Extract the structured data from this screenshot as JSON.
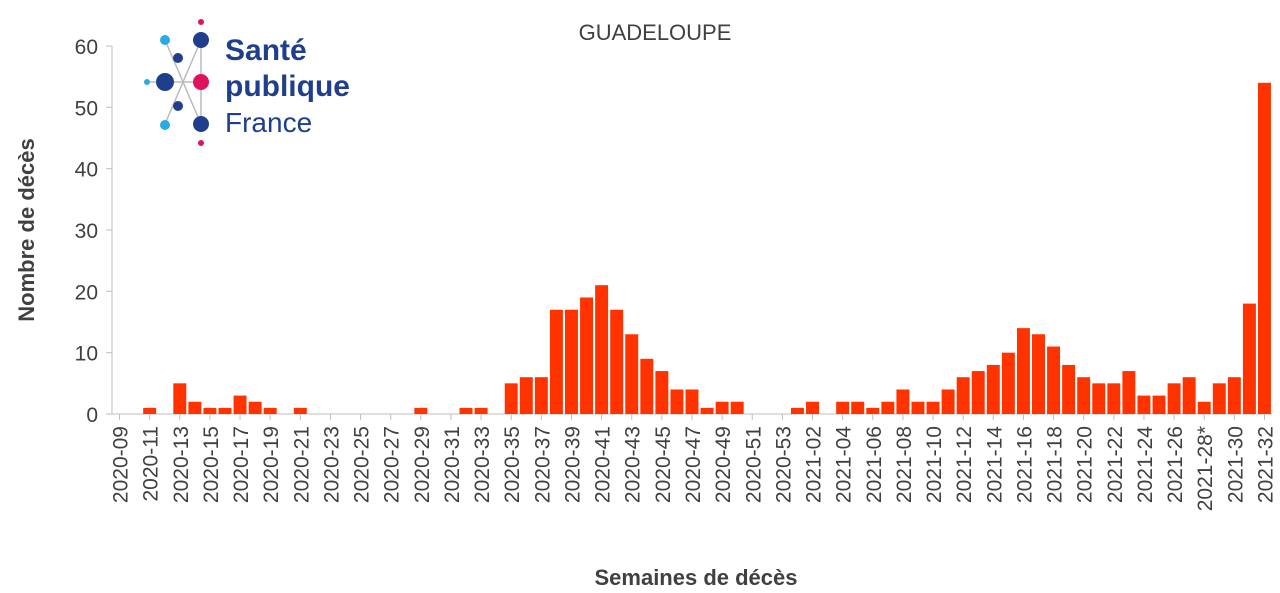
{
  "chart_data": {
    "type": "bar",
    "title": "GUADELOUPE",
    "x_label": "Semaines de décès",
    "y_label": "Nombre de décès",
    "logo": [
      "Santé",
      "publique",
      "France"
    ],
    "color": "#ff3300",
    "categories": [
      "2020-09",
      null,
      "2020-11",
      null,
      "2020-13",
      null,
      "2020-15",
      null,
      "2020-17",
      null,
      "2020-19",
      null,
      "2020-21",
      null,
      "2020-23",
      null,
      "2020-25",
      null,
      "2020-27",
      null,
      "2020-29",
      null,
      "2020-31",
      null,
      "2020-33",
      null,
      "2020-35",
      null,
      "2020-37",
      null,
      "2020-39",
      null,
      "2020-41",
      null,
      "2020-43",
      null,
      "2020-45",
      null,
      "2020-47",
      null,
      "2020-49",
      null,
      "2020-51",
      null,
      "2020-53",
      null,
      "2021-02",
      null,
      "2021-04",
      null,
      "2021-06",
      null,
      "2021-08",
      null,
      "2021-10",
      null,
      "2021-12",
      null,
      "2021-14",
      null,
      "2021-16",
      null,
      "2021-18",
      null,
      "2021-20",
      null,
      "2021-22",
      null,
      "2021-24",
      null,
      "2021-26",
      null,
      "2021-28*",
      null,
      "2021-30",
      null,
      "2021-32"
    ],
    "values": [
      0,
      0,
      1,
      0,
      5,
      2,
      1,
      1,
      3,
      2,
      1,
      0,
      1,
      0,
      0,
      0,
      0,
      0,
      0,
      0,
      1,
      0,
      0,
      1,
      1,
      0,
      5,
      6,
      6,
      17,
      17,
      19,
      21,
      17,
      13,
      9,
      7,
      4,
      4,
      1,
      2,
      2,
      0,
      0,
      0,
      1,
      2,
      0,
      2,
      2,
      1,
      2,
      4,
      2,
      2,
      4,
      6,
      7,
      8,
      10,
      14,
      13,
      11,
      8,
      6,
      5,
      5,
      7,
      3,
      3,
      5,
      6,
      2,
      5,
      6,
      18,
      54
    ],
    "ylim": [
      0,
      60
    ],
    "yticks": [
      0,
      10,
      20,
      30,
      40,
      50,
      60
    ],
    "grid": false
  }
}
